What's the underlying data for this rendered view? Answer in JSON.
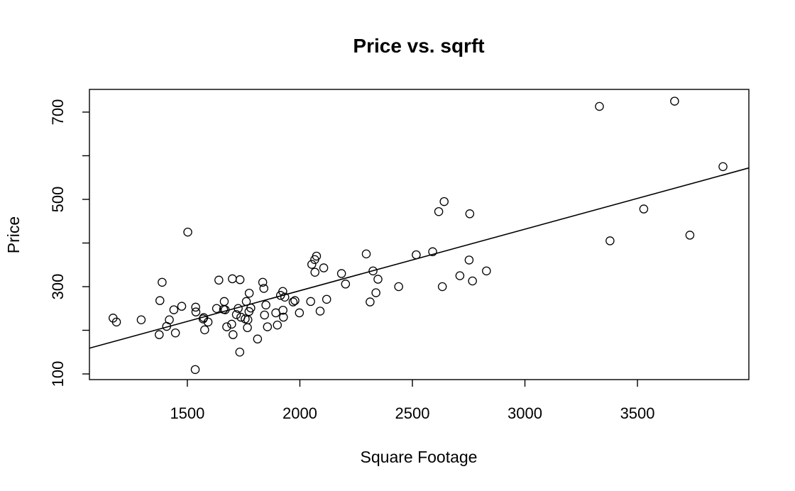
{
  "chart_data": {
    "type": "scatter",
    "title": "Price vs. sqrft",
    "xlabel": "Square Footage",
    "ylabel": "Price",
    "xlim": [
      1065,
      3995
    ],
    "ylim": [
      87,
      752
    ],
    "x_ticks": [
      1500,
      2000,
      2500,
      3000,
      3500
    ],
    "y_ticks": [
      100,
      300,
      500,
      700
    ],
    "y_minor_ticks": [
      200,
      400,
      600
    ],
    "grid": false,
    "legend": "none",
    "regression_line": {
      "x": [
        1065,
        3995
      ],
      "y": [
        159,
        572
      ]
    },
    "points": [
      [
        1170,
        228
      ],
      [
        1185,
        219
      ],
      [
        1295,
        224
      ],
      [
        1375,
        190
      ],
      [
        1378,
        268
      ],
      [
        1388,
        310
      ],
      [
        1408,
        209
      ],
      [
        1420,
        224
      ],
      [
        1440,
        247
      ],
      [
        1447,
        194
      ],
      [
        1475,
        255
      ],
      [
        1502,
        425
      ],
      [
        1535,
        110
      ],
      [
        1537,
        253
      ],
      [
        1538,
        242
      ],
      [
        1570,
        226
      ],
      [
        1573,
        229
      ],
      [
        1577,
        201
      ],
      [
        1592,
        219
      ],
      [
        1630,
        250
      ],
      [
        1640,
        315
      ],
      [
        1661,
        248
      ],
      [
        1664,
        266
      ],
      [
        1668,
        247
      ],
      [
        1675,
        208
      ],
      [
        1697,
        214
      ],
      [
        1700,
        318
      ],
      [
        1703,
        190
      ],
      [
        1718,
        236
      ],
      [
        1726,
        250
      ],
      [
        1734,
        316
      ],
      [
        1738,
        230
      ],
      [
        1733,
        150
      ],
      [
        1757,
        226
      ],
      [
        1762,
        266
      ],
      [
        1767,
        206
      ],
      [
        1769,
        224
      ],
      [
        1774,
        243
      ],
      [
        1775,
        285
      ],
      [
        1782,
        251
      ],
      [
        1812,
        180
      ],
      [
        1835,
        310
      ],
      [
        1840,
        296
      ],
      [
        1843,
        235
      ],
      [
        1849,
        258
      ],
      [
        1856,
        208
      ],
      [
        1893,
        240
      ],
      [
        1900,
        212
      ],
      [
        1914,
        280
      ],
      [
        1924,
        289
      ],
      [
        1925,
        246
      ],
      [
        1927,
        230
      ],
      [
        1933,
        276
      ],
      [
        1970,
        265
      ],
      [
        1978,
        268
      ],
      [
        1998,
        240
      ],
      [
        2048,
        266
      ],
      [
        2053,
        351
      ],
      [
        2066,
        362
      ],
      [
        2067,
        333
      ],
      [
        2074,
        370
      ],
      [
        2090,
        244
      ],
      [
        2106,
        343
      ],
      [
        2119,
        271
      ],
      [
        2185,
        330
      ],
      [
        2203,
        306
      ],
      [
        2295,
        375
      ],
      [
        2312,
        265
      ],
      [
        2325,
        336
      ],
      [
        2338,
        286
      ],
      [
        2347,
        317
      ],
      [
        2439,
        300
      ],
      [
        2517,
        373
      ],
      [
        2590,
        380
      ],
      [
        2617,
        472
      ],
      [
        2633,
        300
      ],
      [
        2641,
        495
      ],
      [
        2711,
        325
      ],
      [
        2752,
        361
      ],
      [
        2755,
        467
      ],
      [
        2767,
        313
      ],
      [
        2829,
        336
      ],
      [
        3331,
        713
      ],
      [
        3378,
        405
      ],
      [
        3528,
        478
      ],
      [
        3665,
        725
      ],
      [
        3733,
        418
      ],
      [
        3880,
        575
      ]
    ]
  }
}
